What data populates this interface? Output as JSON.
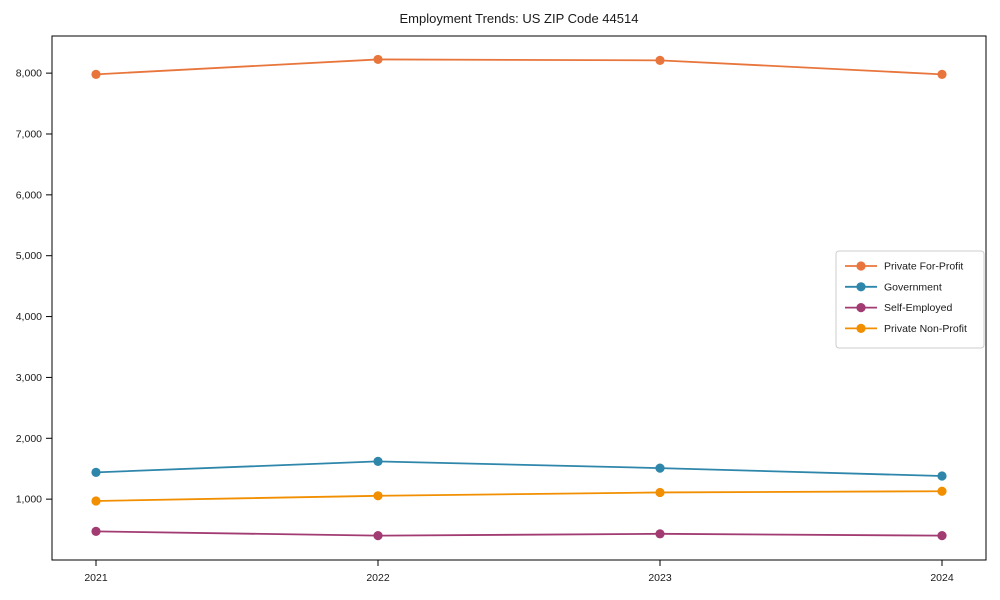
{
  "chart_data": {
    "type": "line",
    "title": "Employment Trends: US ZIP Code 44514",
    "xlabel": "",
    "ylabel": "",
    "x": [
      "2021",
      "2022",
      "2023",
      "2024"
    ],
    "series": [
      {
        "name": "Private For-Profit",
        "color": "#E8763C",
        "values": [
          7980,
          8225,
          8210,
          7980
        ]
      },
      {
        "name": "Government",
        "color": "#2E86AB",
        "values": [
          1440,
          1620,
          1510,
          1380
        ]
      },
      {
        "name": "Self-Employed",
        "color": "#A23B72",
        "values": [
          470,
          400,
          430,
          400
        ]
      },
      {
        "name": "Private Non-Profit",
        "color": "#F18F01",
        "values": [
          970,
          1055,
          1110,
          1130
        ]
      }
    ],
    "ylim": [
      0,
      8610
    ],
    "yticks": [
      1000,
      2000,
      3000,
      4000,
      5000,
      6000,
      7000,
      8000
    ],
    "ytick_labels": [
      "1,000",
      "2,000",
      "3,000",
      "4,000",
      "5,000",
      "6,000",
      "7,000",
      "8,000"
    ],
    "grid": false,
    "marker": "circle",
    "legend_position": "center-right"
  }
}
